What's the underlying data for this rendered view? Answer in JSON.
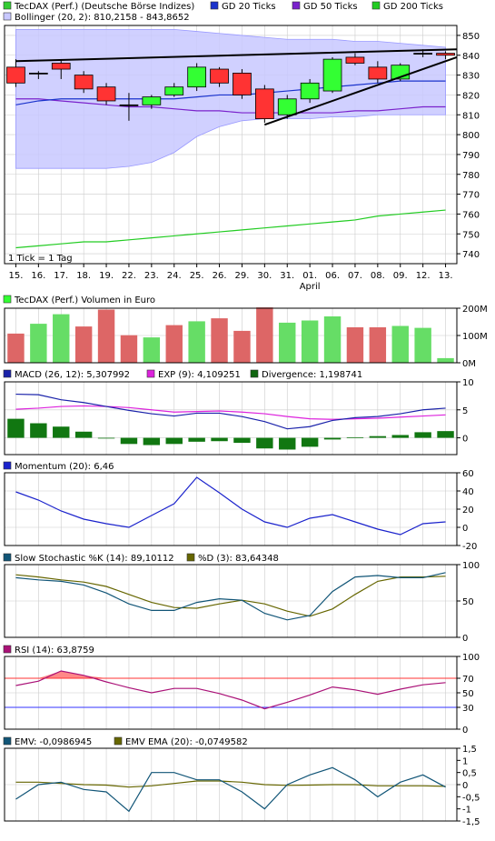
{
  "header_legend": [
    {
      "label": "TecDAX (Perf.) (Deutsche Börse Indizes)",
      "color": "#33cc33"
    },
    {
      "label": "GD 20 Ticks",
      "color": "#1a33cc"
    },
    {
      "label": "GD 50 Ticks",
      "color": "#7a22cc"
    },
    {
      "label": "GD 200 Ticks",
      "color": "#22cc22"
    }
  ],
  "bollinger_label": "Bollinger (20, 2): 810,2158 - 843,8652",
  "interval_note": "1 Tick = 1 Tag",
  "x_dates": [
    "15.",
    "16.",
    "17.",
    "18.",
    "19.",
    "22.",
    "23.",
    "24.",
    "25.",
    "26.",
    "29.",
    "30.",
    "31.",
    "01.",
    "06.",
    "07.",
    "08.",
    "09.",
    "12.",
    "13."
  ],
  "month_label": "April",
  "colors": {
    "up": "#33ff33",
    "down": "#ff3333",
    "band": "#c8c8ff",
    "grid": "#cccccc"
  },
  "chart_data": [
    {
      "type": "candlestick",
      "ylim": [
        735,
        855
      ],
      "yticks": [
        "740",
        "750",
        "760",
        "770",
        "780",
        "790",
        "800",
        "810",
        "820",
        "830",
        "840",
        "850"
      ],
      "series": {
        "open": [
          834,
          831,
          836,
          830,
          824,
          815,
          815,
          820,
          824,
          833,
          831,
          823,
          810,
          818,
          822,
          839,
          834,
          828,
          841,
          841
        ],
        "close": [
          826,
          831,
          833,
          823,
          817,
          815,
          819,
          824,
          834,
          826,
          820,
          808,
          818,
          826,
          838,
          836,
          828,
          835,
          841,
          840
        ],
        "high": [
          838,
          832,
          838,
          832,
          826,
          821,
          820,
          826,
          836,
          834,
          833,
          825,
          820,
          828,
          839,
          841,
          837,
          836,
          843,
          842
        ],
        "low": [
          824,
          828,
          828,
          821,
          815,
          807,
          813,
          819,
          822,
          824,
          818,
          806,
          808,
          816,
          821,
          835,
          826,
          827,
          839,
          838
        ],
        "bollinger_upper": [
          853,
          853,
          853,
          853,
          853,
          853,
          853,
          853,
          852,
          851,
          850,
          849,
          848,
          848,
          848,
          847,
          847,
          846,
          845,
          844
        ],
        "bollinger_lower": [
          783,
          783,
          783,
          783,
          783,
          784,
          786,
          791,
          799,
          804,
          807,
          808,
          808,
          808,
          809,
          809,
          810,
          810,
          810,
          810
        ],
        "gd20": [
          815,
          817,
          818,
          818,
          818,
          818,
          818,
          818,
          819,
          820,
          820,
          821,
          822,
          823,
          824,
          825,
          826,
          827,
          827,
          827
        ],
        "gd50": [
          818,
          818,
          817,
          816,
          815,
          814,
          814,
          813,
          812,
          812,
          811,
          811,
          811,
          811,
          811,
          812,
          812,
          813,
          814,
          814
        ],
        "gd200": [
          743,
          744,
          745,
          746,
          746,
          747,
          748,
          749,
          750,
          751,
          752,
          753,
          754,
          755,
          756,
          757,
          759,
          760,
          761,
          762
        ]
      },
      "trendlines": [
        {
          "from": [
            0,
            837
          ],
          "to": [
            19.5,
            843
          ]
        },
        {
          "from": [
            11,
            805
          ],
          "to": [
            19.5,
            839
          ]
        }
      ]
    },
    {
      "type": "bar",
      "title": "TecDAX (Perf.) Volumen in Euro",
      "ylim": [
        0,
        200
      ],
      "yticks": [
        "0M",
        "100M",
        "200M"
      ],
      "values": [
        107,
        143,
        178,
        133,
        195,
        101,
        93,
        138,
        152,
        163,
        117,
        203,
        147,
        155,
        170,
        130,
        130,
        135,
        128,
        17
      ],
      "direction": [
        "down",
        "up",
        "up",
        "down",
        "down",
        "down",
        "up",
        "down",
        "up",
        "down",
        "down",
        "down",
        "up",
        "up",
        "up",
        "down",
        "down",
        "up",
        "up",
        "up"
      ]
    },
    {
      "type": "line",
      "title": "MACD (26, 12): 5,307992",
      "legend": [
        "MACD (26, 12): 5,307992",
        "EXP (9): 4,109251",
        "Divergence: 1,198741"
      ],
      "ylim": [
        -3,
        10
      ],
      "yticks": [
        "10",
        "5",
        "0"
      ],
      "series": [
        {
          "name": "MACD (26, 12): 5,307992",
          "color": "#1a22aa",
          "values": [
            7.8,
            7.7,
            6.8,
            6.3,
            5.6,
            4.9,
            4.3,
            3.9,
            4.4,
            4.4,
            3.8,
            2.9,
            1.6,
            2.0,
            3.1,
            3.6,
            3.8,
            4.3,
            5.0,
            5.3
          ]
        },
        {
          "name": "EXP (9): 4,109251",
          "color": "#dd22dd",
          "values": [
            5.1,
            5.3,
            5.6,
            5.7,
            5.6,
            5.4,
            5.0,
            4.6,
            4.7,
            4.8,
            4.6,
            4.3,
            3.8,
            3.4,
            3.3,
            3.4,
            3.5,
            3.7,
            3.9,
            4.1
          ]
        },
        {
          "name": "Divergence: 1,198741",
          "color": "#116611",
          "type": "bar",
          "values": [
            3.4,
            2.6,
            2.0,
            1.1,
            0,
            -1.1,
            -1.3,
            -1.1,
            -0.7,
            -0.6,
            -0.9,
            -1.9,
            -2.1,
            -1.6,
            -0.3,
            0.1,
            0.3,
            0.5,
            1.0,
            1.2
          ]
        }
      ]
    },
    {
      "type": "line",
      "title": "Momentum (20): 6,46",
      "ylim": [
        -20,
        60
      ],
      "yticks": [
        "60",
        "40",
        "20",
        "0",
        "-20"
      ],
      "series": [
        {
          "name": "Momentum (20): 6,46",
          "color": "#1a22cc",
          "values": [
            39,
            30,
            18,
            9,
            4,
            0,
            13,
            26,
            55,
            38,
            20,
            6,
            0,
            10,
            14,
            6,
            -2,
            -8,
            4,
            6
          ]
        }
      ]
    },
    {
      "type": "line",
      "title": "Slow Stochastic %K (14): 89,10112",
      "legend": [
        "Slow Stochastic %K (14): 89,10112",
        "%D (3): 83,64348"
      ],
      "ylim": [
        0,
        100
      ],
      "yticks": [
        "100",
        "50",
        "0"
      ],
      "series": [
        {
          "name": "Slow Stochastic %K (14): 89,10112",
          "color": "#115577",
          "values": [
            82,
            79,
            77,
            72,
            61,
            46,
            37,
            37,
            48,
            53,
            51,
            33,
            24,
            30,
            63,
            83,
            85,
            82,
            82,
            89
          ]
        },
        {
          "name": "%D (3): 83,64348",
          "color": "#666600",
          "values": [
            86,
            83,
            79,
            76,
            70,
            59,
            48,
            41,
            40,
            46,
            51,
            46,
            36,
            29,
            39,
            59,
            77,
            83,
            83,
            84
          ]
        }
      ]
    },
    {
      "type": "line",
      "title": "RSI (14): 63,8759",
      "ylim": [
        0,
        100
      ],
      "yticks": [
        "100",
        "70",
        "50",
        "30",
        "0"
      ],
      "reference_lines": [
        70,
        30
      ],
      "series": [
        {
          "name": "RSI (14): 63,8759",
          "color": "#aa1177",
          "values": [
            60,
            66,
            80,
            74,
            65,
            57,
            50,
            56,
            56,
            49,
            40,
            28,
            37,
            47,
            58,
            54,
            48,
            55,
            61,
            64
          ]
        }
      ]
    },
    {
      "type": "line",
      "title": "EMV: -0,0986945",
      "legend": [
        "EMV: -0,0986945",
        "EMV EMA (20): -0,0749582"
      ],
      "ylim": [
        -1.5,
        1.5
      ],
      "yticks": [
        "1,5",
        "1",
        "0,5",
        "0",
        "-0,5",
        "-1",
        "-1,5"
      ],
      "series": [
        {
          "name": "EMV: -0,0986945",
          "color": "#115577",
          "values": [
            -0.6,
            0.0,
            0.1,
            -0.2,
            -0.3,
            -1.1,
            0.5,
            0.5,
            0.2,
            0.2,
            -0.3,
            -1.0,
            0.0,
            0.4,
            0.7,
            0.2,
            -0.5,
            0.1,
            0.4,
            -0.1
          ]
        },
        {
          "name": "EMV EMA (20): -0,0749582",
          "color": "#666600",
          "values": [
            0.1,
            0.1,
            0.05,
            0.0,
            -0.02,
            -0.1,
            -0.05,
            0.05,
            0.15,
            0.15,
            0.1,
            0.0,
            -0.03,
            -0.02,
            0.0,
            0.0,
            -0.05,
            -0.05,
            -0.05,
            -0.07
          ]
        }
      ]
    }
  ]
}
